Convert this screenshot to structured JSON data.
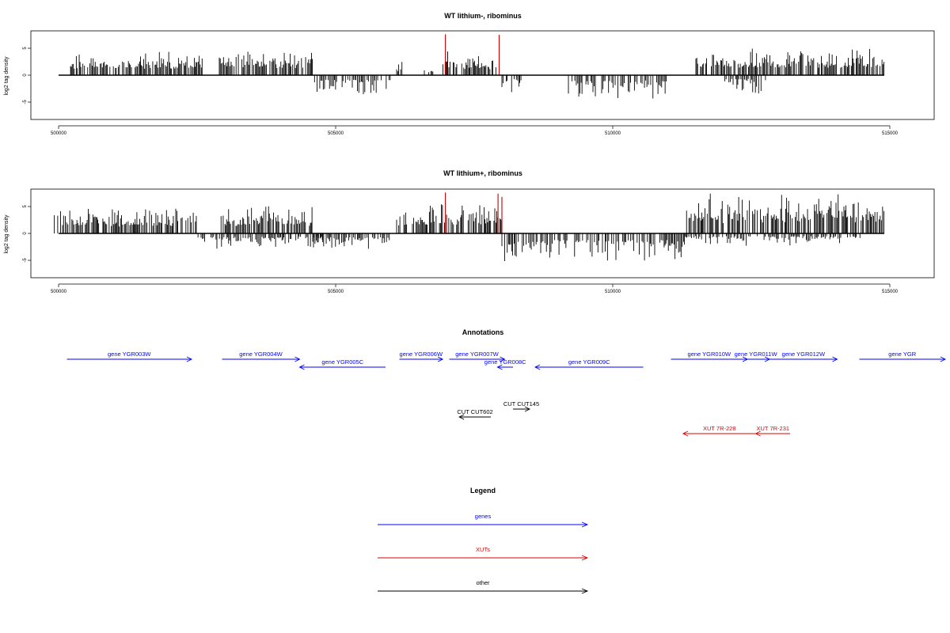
{
  "chart_data": [
    {
      "type": "bar",
      "title": "WT lithium-, ribominus",
      "ylabel": "log2 tag density",
      "xlabel": "",
      "xlim": [
        499500,
        515800
      ],
      "ylim": [
        -8,
        8
      ],
      "xticks": [
        500000,
        505000,
        510000,
        515000
      ],
      "yticks": [
        -5,
        0,
        5
      ],
      "grid": false,
      "baseline": {
        "x_start": 500000,
        "x_end": 514900,
        "y": 0
      },
      "positive_regions": [
        {
          "start": 500200,
          "end": 502600,
          "max": 4.5
        },
        {
          "start": 502900,
          "end": 504600,
          "max": 4.6
        },
        {
          "start": 506100,
          "end": 506200,
          "max": 2.5
        },
        {
          "start": 506600,
          "end": 506800,
          "max": 2.0
        },
        {
          "start": 506900,
          "end": 507900,
          "max": 4.4
        },
        {
          "start": 511500,
          "end": 514900,
          "max": 5.0
        }
      ],
      "negative_regions": [
        {
          "start": 504600,
          "end": 506000,
          "min": -4.2
        },
        {
          "start": 508000,
          "end": 508400,
          "min": -3.8
        },
        {
          "start": 509200,
          "end": 511000,
          "min": -5.0
        },
        {
          "start": 512000,
          "end": 512800,
          "min": -3.5
        }
      ],
      "highlights": [
        {
          "x": 506980,
          "y": 7.6,
          "color": "#cc0000"
        },
        {
          "x": 507950,
          "y": 7.5,
          "color": "#cc0000"
        }
      ]
    },
    {
      "type": "bar",
      "title": "WT lithium+, ribominus",
      "ylabel": "log2 tag density",
      "xlabel": "",
      "xlim": [
        499500,
        515800
      ],
      "ylim": [
        -8,
        8
      ],
      "xticks": [
        500000,
        505000,
        510000,
        515000
      ],
      "yticks": [
        -5,
        0,
        5
      ],
      "grid": false,
      "baseline": {
        "x_start": 500000,
        "x_end": 514900,
        "y": 0
      },
      "positive_regions": [
        {
          "start": 499900,
          "end": 502500,
          "max": 5.0
        },
        {
          "start": 502900,
          "end": 504600,
          "max": 5.5
        },
        {
          "start": 506100,
          "end": 508000,
          "max": 6.0
        },
        {
          "start": 511300,
          "end": 514900,
          "max": 7.4
        }
      ],
      "negative_regions": [
        {
          "start": 502500,
          "end": 504800,
          "min": -3.0
        },
        {
          "start": 504600,
          "end": 506000,
          "min": -3.5
        },
        {
          "start": 508000,
          "end": 508600,
          "min": -7.3
        },
        {
          "start": 508600,
          "end": 511300,
          "min": -6.2
        },
        {
          "start": 511300,
          "end": 514500,
          "min": -2.5
        }
      ],
      "highlights": [
        {
          "x": 506980,
          "y": 7.6,
          "color": "#cc0000"
        },
        {
          "x": 507930,
          "y": 7.4,
          "color": "#cc0000"
        },
        {
          "x": 508000,
          "y": 6.8,
          "color": "#cc0000"
        }
      ]
    }
  ],
  "annotations": {
    "title": "Annotations",
    "xlim": [
      499500,
      515800
    ],
    "features": [
      {
        "label": "gene YGR003W",
        "start": 500150,
        "end": 502400,
        "strand": "+",
        "lane": 1,
        "kind": "gene"
      },
      {
        "label": "gene YGR004W",
        "start": 502950,
        "end": 504350,
        "strand": "+",
        "lane": 1,
        "kind": "gene"
      },
      {
        "label": "gene YGR005C",
        "start": 504350,
        "end": 505900,
        "strand": "-",
        "lane": 2,
        "kind": "gene"
      },
      {
        "label": "gene YGR006W",
        "start": 506150,
        "end": 506930,
        "strand": "+",
        "lane": 1,
        "kind": "gene"
      },
      {
        "label": "gene YGR007W",
        "start": 507050,
        "end": 508050,
        "strand": "+",
        "lane": 1,
        "kind": "gene"
      },
      {
        "label": "gene YGR008C",
        "start": 507920,
        "end": 508200,
        "strand": "-",
        "lane": 2,
        "kind": "gene"
      },
      {
        "label": "gene YGR009C",
        "start": 508600,
        "end": 510550,
        "strand": "-",
        "lane": 2,
        "kind": "gene"
      },
      {
        "label": "gene YGR010W",
        "start": 511050,
        "end": 512430,
        "strand": "+",
        "lane": 1,
        "kind": "gene"
      },
      {
        "label": "gene YGR011W",
        "start": 512330,
        "end": 512830,
        "strand": "+",
        "lane": 1,
        "kind": "gene"
      },
      {
        "label": "gene YGR012W",
        "start": 512830,
        "end": 514050,
        "strand": "+",
        "lane": 1,
        "kind": "gene"
      },
      {
        "label": "gene YGR",
        "start": 514450,
        "end": 516000,
        "strand": "+",
        "lane": 1,
        "kind": "gene"
      },
      {
        "label": "CUT CUT145",
        "start": 508200,
        "end": 508500,
        "strand": "+",
        "lane": 3,
        "kind": "other"
      },
      {
        "label": "CUT CUT602",
        "start": 507230,
        "end": 507800,
        "strand": "-",
        "lane": 4,
        "kind": "other"
      },
      {
        "label": "XUT 7R-228",
        "start": 511270,
        "end": 512580,
        "strand": "-",
        "lane": 5,
        "kind": "xut"
      },
      {
        "label": "XUT 7R-231",
        "start": 512580,
        "end": 513200,
        "strand": "-",
        "lane": 5,
        "kind": "xut"
      }
    ]
  },
  "legend": {
    "title": "Legend",
    "items": [
      {
        "label": "genes",
        "color": "#0000ff"
      },
      {
        "label": "XUTs",
        "color": "#dd0000"
      },
      {
        "label": "other",
        "color": "#000000"
      }
    ]
  },
  "colors": {
    "gene": "#0000ff",
    "xut": "#dd0000",
    "other": "#000000",
    "signal": "#000000"
  }
}
